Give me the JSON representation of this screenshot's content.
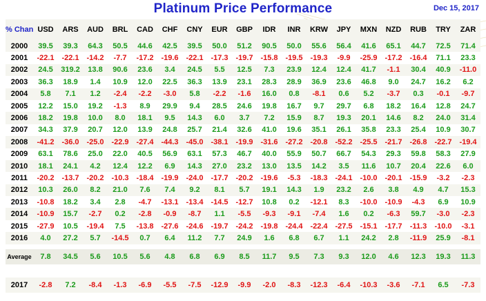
{
  "title": "Platinum Price Performance",
  "date": "Dec 15, 2017",
  "corner_label": "% Change",
  "colors": {
    "title": "#1f24c8",
    "positive": "#1a9a1a",
    "negative": "#e01414"
  },
  "chart_data": {
    "type": "table",
    "title": "Platinum Price Performance",
    "columns": [
      "USD",
      "ARS",
      "AUD",
      "BRL",
      "CAD",
      "CHF",
      "CNY",
      "EUR",
      "GBP",
      "IDR",
      "INR",
      "KRW",
      "JPY",
      "MXN",
      "NZD",
      "RUB",
      "TRY",
      "ZAR"
    ],
    "rows": [
      {
        "label": "2000",
        "values": [
          "39.5",
          "39.3",
          "64.3",
          "50.5",
          "44.6",
          "42.5",
          "39.5",
          "50.0",
          "51.2",
          "90.5",
          "50.0",
          "55.6",
          "56.4",
          "41.6",
          "65.1",
          "44.7",
          "72.5",
          "71.4"
        ]
      },
      {
        "label": "2001",
        "values": [
          "-22.1",
          "-22.1",
          "-14.2",
          "-7.7",
          "-17.2",
          "-19.6",
          "-22.1",
          "-17.3",
          "-19.7",
          "-15.8",
          "-19.5",
          "-19.3",
          "-9.9",
          "-25.9",
          "-17.2",
          "-16.4",
          "71.1",
          "23.3"
        ]
      },
      {
        "label": "2002",
        "values": [
          "24.5",
          "319.2",
          "13.8",
          "90.6",
          "23.6",
          "3.4",
          "24.5",
          "5.5",
          "12.5",
          "7.3",
          "23.9",
          "12.4",
          "12.4",
          "41.7",
          "-1.1",
          "30.4",
          "40.9",
          "-11.0"
        ]
      },
      {
        "label": "2003",
        "values": [
          "36.3",
          "18.9",
          "1.4",
          "10.9",
          "12.0",
          "22.5",
          "36.3",
          "13.9",
          "23.1",
          "28.3",
          "28.9",
          "36.9",
          "23.6",
          "46.8",
          "9.0",
          "24.7",
          "16.2",
          "6.2"
        ]
      },
      {
        "label": "2004",
        "values": [
          "5.8",
          "7.1",
          "1.2",
          "-2.4",
          "-2.2",
          "-3.0",
          "5.8",
          "-2.2",
          "-1.6",
          "16.0",
          "0.8",
          "-8.1",
          "0.6",
          "5.2",
          "-3.7",
          "0.3",
          "-0.1",
          "-9.7"
        ]
      },
      {
        "label": "2005",
        "values": [
          "12.2",
          "15.0",
          "19.2",
          "-1.3",
          "8.9",
          "29.9",
          "9.4",
          "28.5",
          "24.6",
          "19.8",
          "16.7",
          "9.7",
          "29.7",
          "6.8",
          "18.2",
          "16.4",
          "12.8",
          "24.7"
        ]
      },
      {
        "label": "2006",
        "values": [
          "18.2",
          "19.8",
          "10.0",
          "8.0",
          "18.1",
          "9.5",
          "14.3",
          "6.0",
          "3.7",
          "7.2",
          "15.9",
          "8.7",
          "19.3",
          "20.1",
          "14.6",
          "8.2",
          "24.0",
          "31.4"
        ]
      },
      {
        "label": "2007",
        "values": [
          "34.3",
          "37.9",
          "20.7",
          "12.0",
          "13.9",
          "24.8",
          "25.7",
          "21.4",
          "32.6",
          "41.0",
          "19.6",
          "35.1",
          "26.1",
          "35.8",
          "23.3",
          "25.4",
          "10.9",
          "30.7"
        ]
      },
      {
        "label": "2008",
        "values": [
          "-41.2",
          "-36.0",
          "-25.0",
          "-22.9",
          "-27.4",
          "-44.3",
          "-45.0",
          "-38.1",
          "-19.9",
          "-31.6",
          "-27.2",
          "-20.8",
          "-52.2",
          "-25.5",
          "-21.7",
          "-26.8",
          "-22.7",
          "-19.4"
        ]
      },
      {
        "label": "2009",
        "values": [
          "63.1",
          "78.6",
          "25.0",
          "22.0",
          "40.5",
          "56.9",
          "63.1",
          "57.3",
          "46.7",
          "40.0",
          "55.9",
          "50.7",
          "66.7",
          "54.3",
          "29.3",
          "59.8",
          "58.3",
          "27.9"
        ]
      },
      {
        "label": "2010",
        "values": [
          "18.1",
          "24.1",
          "4.2",
          "12.4",
          "12.2",
          "6.9",
          "14.3",
          "27.0",
          "23.2",
          "13.0",
          "13.5",
          "14.2",
          "3.5",
          "11.6",
          "10.7",
          "20.4",
          "22.6",
          "6.0"
        ]
      },
      {
        "label": "2011",
        "values": [
          "-20.2",
          "-13.7",
          "-20.2",
          "-10.3",
          "-18.4",
          "-19.9",
          "-24.0",
          "-17.7",
          "-20.2",
          "-19.6",
          "-5.3",
          "-18.3",
          "-24.1",
          "-10.0",
          "-20.1",
          "-15.9",
          "-3.2",
          "-2.3"
        ]
      },
      {
        "label": "2012",
        "values": [
          "10.3",
          "26.0",
          "8.2",
          "21.0",
          "7.6",
          "7.4",
          "9.2",
          "8.1",
          "5.7",
          "19.1",
          "14.3",
          "1.9",
          "23.2",
          "2.6",
          "3.8",
          "4.9",
          "4.7",
          "15.3"
        ]
      },
      {
        "label": "2013",
        "values": [
          "-10.8",
          "18.2",
          "3.4",
          "2.8",
          "-4.7",
          "-13.1",
          "-13.4",
          "-14.5",
          "-12.7",
          "10.8",
          "0.2",
          "-12.1",
          "8.3",
          "-10.0",
          "-10.9",
          "-4.3",
          "6.9",
          "10.9"
        ]
      },
      {
        "label": "2014",
        "values": [
          "-10.9",
          "15.7",
          "-2.7",
          "0.2",
          "-2.8",
          "-0.9",
          "-8.7",
          "1.1",
          "-5.5",
          "-9.3",
          "-9.1",
          "-7.4",
          "1.6",
          "0.2",
          "-6.3",
          "59.7",
          "-3.0",
          "-2.3"
        ]
      },
      {
        "label": "2015",
        "values": [
          "-27.9",
          "10.5",
          "-19.4",
          "7.5",
          "-13.8",
          "-27.6",
          "-24.6",
          "-19.7",
          "-24.2",
          "-19.8",
          "-24.4",
          "-22.4",
          "-27.5",
          "-15.1",
          "-17.7",
          "-11.3",
          "-10.0",
          "-3.1"
        ]
      },
      {
        "label": "2016",
        "values": [
          "4.0",
          "27.2",
          "5.7",
          "-14.5",
          "0.7",
          "6.4",
          "11.2",
          "7.7",
          "24.9",
          "1.6",
          "6.8",
          "6.7",
          "1.1",
          "24.2",
          "2.8",
          "-11.9",
          "25.9",
          "-8.1"
        ]
      }
    ],
    "average": {
      "label": "Average",
      "values": [
        "7.8",
        "34.5",
        "5.6",
        "10.5",
        "5.6",
        "4.8",
        "6.8",
        "6.9",
        "8.5",
        "11.7",
        "9.5",
        "7.3",
        "9.3",
        "12.0",
        "4.6",
        "12.3",
        "19.3",
        "11.3"
      ]
    },
    "ytd": {
      "label": "2017",
      "values": [
        "-2.8",
        "7.2",
        "-8.4",
        "-1.3",
        "-6.9",
        "-5.5",
        "-7.5",
        "-12.9",
        "-9.9",
        "-2.0",
        "-8.3",
        "-12.3",
        "-6.4",
        "-10.3",
        "-3.6",
        "-7.1",
        "6.5",
        "-7.3"
      ]
    }
  }
}
